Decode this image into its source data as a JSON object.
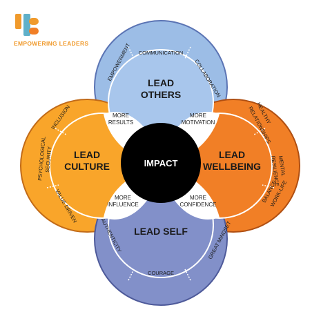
{
  "brand": {
    "name": "EMPOWERING LEADERS",
    "colors": {
      "blue": "#9cbde6",
      "orange": "#f9a52a",
      "orange_dark": "#f17f26",
      "purple": "#8290c9",
      "black": "#000000",
      "brand_teal": "#5fb0c9"
    }
  },
  "center": {
    "label": "IMPACT"
  },
  "quadrants": {
    "others": {
      "title_1": "LEAD",
      "title_2": "OTHERS"
    },
    "culture": {
      "title_1": "LEAD",
      "title_2": "CULTURE"
    },
    "wellbeing": {
      "title_1": "LEAD",
      "title_2": "WELLBEING"
    },
    "self": {
      "title_1": "LEAD SELF"
    }
  },
  "petals": {
    "results": {
      "line1": "MORE",
      "line2": "RESULTS"
    },
    "motivation": {
      "line1": "MORE",
      "line2": "MOTIVATION"
    },
    "influence": {
      "line1": "MORE",
      "line2": "INFLUENCE"
    },
    "confidence": {
      "line1": "MORE",
      "line2": "CONFIDENCE"
    }
  },
  "outer_ring": {
    "top": [
      "EMPOWERMENT",
      "COMMUNICATION",
      "COLLABORATION"
    ],
    "left": [
      "INCLUSION",
      "PSYCHOLOGICAL",
      "SECURITY",
      "VALUE DRIVEN"
    ],
    "right": [
      "HEALTHY",
      "RELATIONSHIPS",
      "MENTAL",
      "RESILIENCE",
      "WORK-LIFE",
      "BALANCE"
    ],
    "bottom": [
      "AUTHENTICITY",
      "COURAGE",
      "GREAT MINDSET"
    ]
  }
}
